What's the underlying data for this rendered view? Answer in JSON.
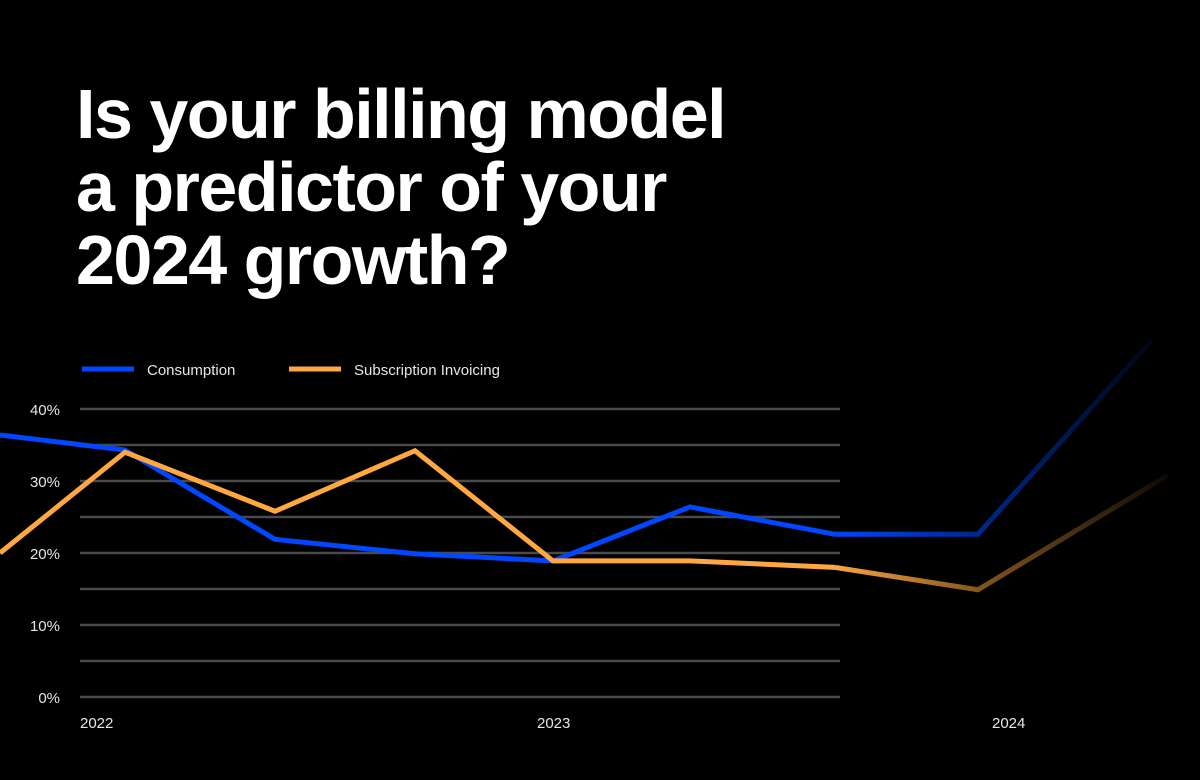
{
  "title": "Is your billing model\na predictor of your\n2024 growth?",
  "chart_data": {
    "type": "line",
    "title": "Is your billing model a predictor of your 2024 growth?",
    "xlabel": "",
    "ylabel": "",
    "x_tick_labels": [
      "2022",
      "2023",
      "2024"
    ],
    "y_tick_labels": [
      "0%",
      "10%",
      "20%",
      "30%",
      "40%"
    ],
    "ylim": [
      0,
      40
    ],
    "grid": true,
    "legend": "top-left",
    "series": [
      {
        "name": "Consumption",
        "color": "#0047FF",
        "values": [
          36.4,
          34.3,
          21.9,
          19.9,
          18.9,
          26.4,
          22.6,
          22.6,
          49.6
        ]
      },
      {
        "name": "Subscription Invoicing",
        "color": "#FFA740",
        "values": [
          20.0,
          34.0,
          25.8,
          34.2,
          18.9,
          18.9,
          18.0,
          14.9,
          30.8
        ]
      }
    ]
  }
}
